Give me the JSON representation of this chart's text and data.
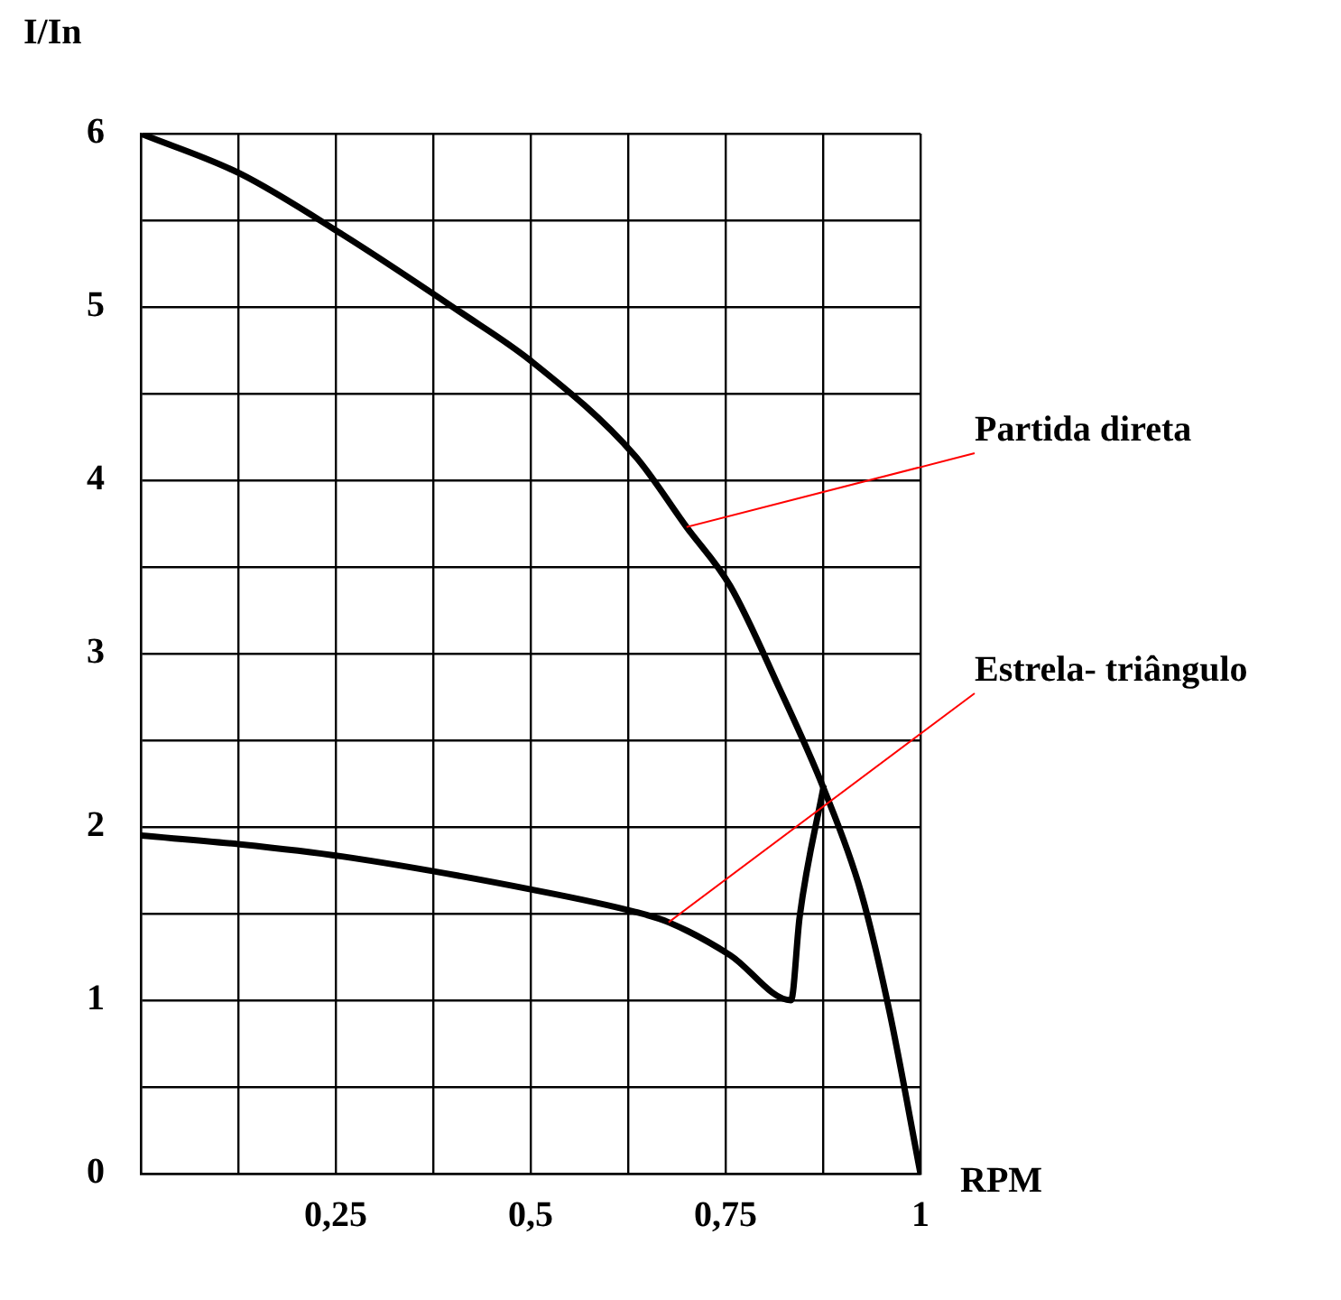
{
  "chart_data": {
    "type": "line",
    "xlabel": "RPM",
    "ylabel": "I/In",
    "xlim": [
      0,
      1
    ],
    "ylim": [
      0,
      6
    ],
    "xticks": [
      {
        "value": 0,
        "label": null
      },
      {
        "value": 0.125,
        "label": null
      },
      {
        "value": 0.25,
        "label": "0,25"
      },
      {
        "value": 0.375,
        "label": null
      },
      {
        "value": 0.5,
        "label": "0,5"
      },
      {
        "value": 0.625,
        "label": null
      },
      {
        "value": 0.75,
        "label": "0,75"
      },
      {
        "value": 0.875,
        "label": null
      },
      1
    ],
    "yticks": [
      0,
      {
        "value": 0.5,
        "label": null
      },
      1,
      {
        "value": 1.5,
        "label": null
      },
      2,
      {
        "value": 2.5,
        "label": null
      },
      3,
      {
        "value": 3.5,
        "label": null
      },
      4,
      {
        "value": 4.5,
        "label": null
      },
      5,
      {
        "value": 5.5,
        "label": null
      },
      6
    ],
    "grid": true,
    "legend": false,
    "marker": "none",
    "line_style": "solid",
    "series": [
      {
        "color": "#000000",
        "x": [
          0,
          0.127,
          0.258,
          0.41,
          0.5,
          0.634,
          0.7,
          0.756,
          0.818,
          0.876,
          0.924,
          0.96,
          1.0
        ],
        "values": [
          6,
          5.77,
          5.42,
          4.97,
          4.69,
          4.14,
          3.73,
          3.39,
          2.81,
          2.22,
          1.62,
          0.94,
          0
        ]
      },
      {
        "color": "#000000",
        "x": [
          0,
          0.127,
          0.258,
          0.5,
          0.634,
          0.677,
          0.756,
          0.834,
          0.845,
          0.876
        ],
        "values": [
          1.95,
          1.9,
          1.83,
          1.64,
          1.51,
          1.45,
          1.26,
          1.0,
          1.48,
          2.24
        ]
      }
    ],
    "annotations": [
      {
        "text": "Partida direta",
        "x": 0.7,
        "y": 3.73
      },
      {
        "text": "Estrela- triângulo",
        "x": 0.677,
        "y": 1.45
      }
    ]
  }
}
